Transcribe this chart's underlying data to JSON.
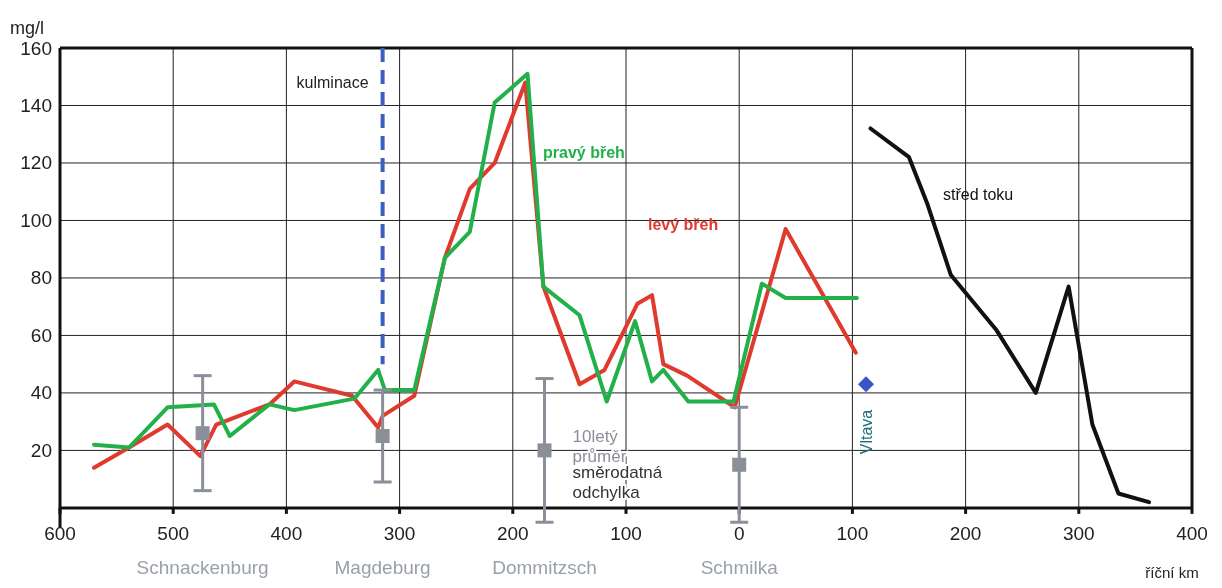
{
  "chart_data": {
    "type": "line",
    "xlabel": "říční km",
    "ylabel": "mg/l",
    "xlim": [
      -600,
      400
    ],
    "ylim": [
      -7,
      160
    ],
    "xticks": [
      {
        "value": -600,
        "label": "600"
      },
      {
        "value": -500,
        "label": "500"
      },
      {
        "value": -400,
        "label": "400"
      },
      {
        "value": -300,
        "label": "300"
      },
      {
        "value": -200,
        "label": "200"
      },
      {
        "value": -100,
        "label": "100"
      },
      {
        "value": 0,
        "label": "0"
      },
      {
        "value": 100,
        "label": "100"
      },
      {
        "value": 200,
        "label": "200"
      },
      {
        "value": 300,
        "label": "300"
      },
      {
        "value": 400,
        "label": "400"
      }
    ],
    "yticks": [
      20,
      40,
      60,
      80,
      100,
      120,
      140,
      160
    ],
    "grid": true,
    "series": [
      {
        "name": "levý břeh",
        "color": "#e03a2f",
        "x": [
          -570,
          -539,
          -505,
          -476,
          -462,
          -415,
          -393,
          -342,
          -319,
          -315,
          -287,
          -260,
          -238,
          -216,
          -189,
          -173,
          -141,
          -119,
          -90,
          -77,
          -67,
          -46,
          -4,
          41,
          103
        ],
        "values": [
          14,
          21,
          29,
          18,
          29,
          36,
          44,
          39,
          28,
          32,
          39,
          87,
          111,
          120,
          148,
          77,
          43,
          48,
          71,
          74,
          50,
          46,
          35,
          97,
          54
        ]
      },
      {
        "name": "pravý břeh",
        "color": "#22b04b",
        "x": [
          -570,
          -539,
          -505,
          -464,
          -450,
          -415,
          -393,
          -340,
          -319,
          -313,
          -287,
          -260,
          -238,
          -216,
          -187,
          -173,
          -141,
          -117,
          -92,
          -77,
          -67,
          -45,
          -5,
          20,
          41,
          104
        ],
        "values": [
          22,
          21,
          35,
          36,
          25,
          36,
          34,
          38,
          48,
          41,
          41,
          87,
          96,
          141,
          151,
          77,
          67,
          37,
          65,
          44,
          48,
          37,
          37,
          78,
          73,
          73
        ]
      },
      {
        "name": "střed toku",
        "color": "#111111",
        "x": [
          116,
          150,
          166,
          187,
          227,
          262,
          291,
          312,
          335,
          362
        ],
        "values": [
          132,
          122,
          106,
          81,
          62,
          40,
          77,
          29,
          5,
          2
        ]
      },
      {
        "type": "scatter",
        "color": "#8a8f9a",
        "marker": "square",
        "x": [
          -474,
          -315,
          -172,
          0
        ],
        "values": [
          26,
          25,
          20,
          15
        ],
        "errors": [
          20,
          16,
          25,
          20
        ]
      },
      {
        "type": "scatter",
        "name": "Vltava",
        "color": "#3a55c8",
        "marker": "diamond",
        "x": [
          112
        ],
        "values": [
          43
        ]
      }
    ],
    "ref_lines": [
      {
        "axis": "x",
        "value": -315,
        "label": "kulminace",
        "color": "#3a5fc0",
        "line_style": "dashed"
      }
    ],
    "annotations": [
      {
        "text": "10letý průměr",
        "x": -172,
        "y": 20
      },
      {
        "text": "směrodatná odchylka",
        "x": -172,
        "y": 0
      },
      "Schnackenburg",
      "Magdeburg",
      "Dommitzsch",
      "Schmilka"
    ]
  }
}
